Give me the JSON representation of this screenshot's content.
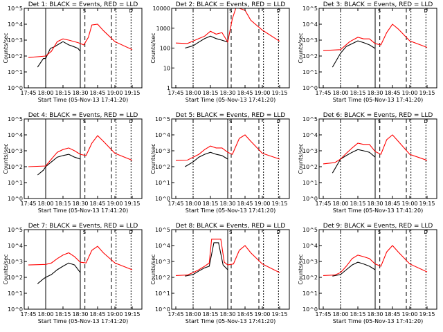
{
  "figure": {
    "colors": {
      "events": "#000000",
      "lld": "#ff0000",
      "axes": "#000000",
      "background": "#ffffff"
    }
  },
  "chart_data": [
    {
      "type": "line",
      "title": "Det 1: BLACK = Events, RED = LLD",
      "xlabel": "Start Time (05-Nov-13 17:41:20)",
      "ylabel": "Counts/sec",
      "y_scale": "log",
      "x_ticks": [
        "17:45",
        "18:00",
        "18:15",
        "18:30",
        "18:45",
        "19:00",
        "19:15"
      ],
      "y_ticks": [
        "10^0",
        "10^1",
        "10^2",
        "10^3",
        "10^4",
        "10^5"
      ],
      "ylim": [
        1,
        100000
      ],
      "markers": {
        "solid": [
          "18:00",
          "18:30"
        ],
        "dashed": [
          "18:34",
          "18:57"
        ],
        "dotted": [
          "19:01",
          "19:14"
        ],
        "labels": [
          "S",
          "D"
        ]
      },
      "series": [
        {
          "name": "Events",
          "color": "#000000",
          "x": [
            "17:53",
            "17:58",
            "18:00",
            "18:04",
            "18:08",
            "18:12",
            "18:15",
            "18:20",
            "18:24",
            "18:28",
            "18:30"
          ],
          "y": [
            20,
            70,
            70,
            300,
            400,
            600,
            800,
            500,
            400,
            300,
            200
          ]
        },
        {
          "name": "LLD",
          "color": "#ff0000",
          "x": [
            "17:45",
            "18:00",
            "18:05",
            "18:10",
            "18:15",
            "18:20",
            "18:28",
            "18:33",
            "18:37",
            "18:40",
            "18:45",
            "18:50",
            "19:00",
            "19:15"
          ],
          "y": [
            80,
            100,
            200,
            800,
            1200,
            1000,
            700,
            500,
            1500,
            9000,
            10000,
            4000,
            800,
            250
          ]
        }
      ]
    },
    {
      "type": "line",
      "title": "Det 2: BLACK = Events, RED = LLD",
      "xlabel": "Start Time (05-Nov-13 17:41:20)",
      "ylabel": "Counts/sec",
      "y_scale": "log",
      "x_ticks": [
        "17:45",
        "18:00",
        "18:15",
        "18:30",
        "18:45",
        "19:00",
        "19:15"
      ],
      "y_ticks": [
        "1",
        "10",
        "100",
        "1000",
        "10000"
      ],
      "ylim": [
        1,
        10000
      ],
      "markers": {
        "solid": [
          "18:30"
        ],
        "dashed": [
          "18:33",
          "18:57"
        ],
        "dotted": [
          "18:00",
          "19:01",
          "19:14"
        ],
        "labels": [
          "S",
          "D"
        ]
      },
      "series": [
        {
          "name": "Events",
          "color": "#000000",
          "x": [
            "17:53",
            "18:00",
            "18:05",
            "18:10",
            "18:15",
            "18:20",
            "18:25",
            "18:30"
          ],
          "y": [
            100,
            130,
            200,
            300,
            400,
            300,
            250,
            200
          ]
        },
        {
          "name": "LLD",
          "color": "#ff0000",
          "x": [
            "17:45",
            "17:55",
            "18:05",
            "18:10",
            "18:15",
            "18:20",
            "18:25",
            "18:30",
            "18:34",
            "18:37",
            "18:40",
            "18:45",
            "18:50",
            "19:00",
            "19:15"
          ],
          "y": [
            180,
            170,
            300,
            400,
            700,
            500,
            600,
            200,
            3000,
            10000,
            10000,
            8000,
            2500,
            800,
            220
          ]
        }
      ]
    },
    {
      "type": "line",
      "title": "Det 3: BLACK = Events, RED = LLD",
      "xlabel": "Start Time (05-Nov-13 17:41:20)",
      "ylabel": "Counts/sec",
      "y_scale": "log",
      "x_ticks": [
        "17:45",
        "18:00",
        "18:15",
        "18:30",
        "18:45",
        "19:00",
        "19:15"
      ],
      "y_ticks": [
        "10^0",
        "10^1",
        "10^2",
        "10^3",
        "10^4",
        "10^5"
      ],
      "ylim": [
        1,
        100000
      ],
      "markers": {
        "solid": [
          "18:30"
        ],
        "dashed": [
          "18:34",
          "18:57"
        ],
        "dotted": [
          "18:00",
          "19:01",
          "19:14"
        ],
        "labels": [
          "S",
          "D"
        ]
      },
      "series": [
        {
          "name": "Events",
          "color": "#000000",
          "x": [
            "17:53",
            "18:00",
            "18:05",
            "18:10",
            "18:15",
            "18:20",
            "18:25",
            "18:30"
          ],
          "y": [
            20,
            150,
            400,
            600,
            900,
            700,
            500,
            300
          ]
        },
        {
          "name": "LLD",
          "color": "#ff0000",
          "x": [
            "17:45",
            "18:00",
            "18:08",
            "18:15",
            "18:20",
            "18:25",
            "18:30",
            "18:35",
            "18:40",
            "18:45",
            "18:50",
            "19:00",
            "19:15"
          ],
          "y": [
            220,
            250,
            800,
            1500,
            1200,
            1200,
            600,
            500,
            3000,
            10000,
            5000,
            900,
            350
          ]
        }
      ]
    },
    {
      "type": "line",
      "title": "Det 4: BLACK = Events, RED = LLD",
      "xlabel": "Start Time (05-Nov-13 17:41:20)",
      "ylabel": "Counts/sec",
      "y_scale": "log",
      "x_ticks": [
        "17:45",
        "18:00",
        "18:15",
        "18:30",
        "18:45",
        "19:00",
        "19:15"
      ],
      "y_ticks": [
        "10^0",
        "10^1",
        "10^2",
        "10^3",
        "10^4",
        "10^5"
      ],
      "ylim": [
        1,
        100000
      ],
      "markers": {
        "solid": [
          "18:00",
          "18:30"
        ],
        "dashed": [
          "18:34",
          "18:57"
        ],
        "dotted": [
          "19:01",
          "19:14"
        ],
        "labels": [
          "S",
          "D"
        ]
      },
      "series": [
        {
          "name": "Events",
          "color": "#000000",
          "x": [
            "17:53",
            "17:58",
            "18:00",
            "18:05",
            "18:10",
            "18:15",
            "18:20",
            "18:25",
            "18:30"
          ],
          "y": [
            30,
            60,
            100,
            200,
            400,
            500,
            600,
            400,
            300
          ]
        },
        {
          "name": "LLD",
          "color": "#ff0000",
          "x": [
            "17:45",
            "18:00",
            "18:05",
            "18:10",
            "18:15",
            "18:20",
            "18:25",
            "18:30",
            "18:35",
            "18:40",
            "18:45",
            "18:50",
            "19:00",
            "19:15"
          ],
          "y": [
            100,
            110,
            300,
            800,
            1200,
            1500,
            1000,
            600,
            500,
            3000,
            9000,
            4000,
            700,
            250
          ]
        }
      ]
    },
    {
      "type": "line",
      "title": "Det 5: BLACK = Events, RED = LLD",
      "xlabel": "Start Time (05-Nov-13 17:41:20)",
      "ylabel": "Counts/sec",
      "y_scale": "log",
      "x_ticks": [
        "17:45",
        "18:00",
        "18:15",
        "18:30",
        "18:45",
        "19:00",
        "19:15"
      ],
      "y_ticks": [
        "10^0",
        "10^1",
        "10^2",
        "10^3",
        "10^4",
        "10^5"
      ],
      "ylim": [
        1,
        100000
      ],
      "markers": {
        "solid": [
          "18:30"
        ],
        "dashed": [
          "18:33",
          "18:57"
        ],
        "dotted": [
          "18:00",
          "19:01",
          "19:14"
        ],
        "labels": [
          "S",
          "D"
        ]
      },
      "series": [
        {
          "name": "Events",
          "color": "#000000",
          "x": [
            "17:53",
            "18:00",
            "18:05",
            "18:10",
            "18:15",
            "18:20",
            "18:25",
            "18:30"
          ],
          "y": [
            100,
            200,
            400,
            600,
            800,
            600,
            500,
            300
          ]
        },
        {
          "name": "LLD",
          "color": "#ff0000",
          "x": [
            "17:45",
            "17:55",
            "18:05",
            "18:10",
            "18:15",
            "18:20",
            "18:25",
            "18:30",
            "18:34",
            "18:40",
            "18:45",
            "18:50",
            "19:00",
            "19:15"
          ],
          "y": [
            250,
            260,
            600,
            1200,
            2000,
            1500,
            1500,
            800,
            600,
            6000,
            10000,
            4000,
            700,
            300
          ]
        }
      ]
    },
    {
      "type": "line",
      "title": "Det 6: BLACK = Events, RED = LLD",
      "xlabel": "Start Time (05-Nov-13 17:41:20)",
      "ylabel": "Counts/sec",
      "y_scale": "log",
      "x_ticks": [
        "17:45",
        "18:00",
        "18:15",
        "18:30",
        "18:45",
        "19:00",
        "19:15"
      ],
      "y_ticks": [
        "10^0",
        "10^1",
        "10^2",
        "10^3",
        "10^4",
        "10^5"
      ],
      "ylim": [
        1,
        100000
      ],
      "markers": {
        "solid": [
          "18:30"
        ],
        "dashed": [
          "18:34",
          "18:57"
        ],
        "dotted": [
          "18:00",
          "19:01",
          "19:14"
        ],
        "labels": [
          "S",
          "D"
        ]
      },
      "series": [
        {
          "name": "Events",
          "color": "#000000",
          "x": [
            "17:53",
            "18:00",
            "18:05",
            "18:10",
            "18:15",
            "18:20",
            "18:25",
            "18:30"
          ],
          "y": [
            40,
            300,
            500,
            800,
            1200,
            1000,
            800,
            400
          ]
        },
        {
          "name": "LLD",
          "color": "#ff0000",
          "x": [
            "17:45",
            "17:55",
            "18:00",
            "18:05",
            "18:10",
            "18:15",
            "18:20",
            "18:25",
            "18:30",
            "18:35",
            "18:40",
            "18:45",
            "18:50",
            "19:00",
            "19:15"
          ],
          "y": [
            150,
            180,
            300,
            700,
            1500,
            3000,
            2500,
            2500,
            900,
            600,
            5000,
            10000,
            4000,
            600,
            250
          ]
        }
      ]
    },
    {
      "type": "line",
      "title": "Det 7: BLACK = Events, RED = LLD",
      "xlabel": "Start Time (05-Nov-13 17:41:20)",
      "ylabel": "Counts/sec",
      "y_scale": "log",
      "x_ticks": [
        "17:45",
        "18:00",
        "18:15",
        "18:30",
        "18:45",
        "19:00",
        "19:15"
      ],
      "y_ticks": [
        "10^0",
        "10^1",
        "10^2",
        "10^3",
        "10^4",
        "10^5"
      ],
      "ylim": [
        1,
        100000
      ],
      "markers": {
        "solid": [
          "18:00",
          "18:30"
        ],
        "dashed": [
          "18:34",
          "18:57"
        ],
        "dotted": [
          "19:01",
          "19:14"
        ],
        "labels": [
          "S",
          "D"
        ]
      },
      "series": [
        {
          "name": "Events",
          "color": "#000000",
          "x": [
            "17:53",
            "17:58",
            "18:00",
            "18:05",
            "18:10",
            "18:15",
            "18:20",
            "18:25",
            "18:30"
          ],
          "y": [
            40,
            80,
            100,
            150,
            300,
            500,
            800,
            600,
            200
          ]
        },
        {
          "name": "LLD",
          "color": "#ff0000",
          "x": [
            "17:45",
            "18:00",
            "18:05",
            "18:10",
            "18:15",
            "18:20",
            "18:25",
            "18:30",
            "18:35",
            "18:40",
            "18:45",
            "18:50",
            "19:00",
            "19:15"
          ],
          "y": [
            600,
            650,
            800,
            1500,
            2500,
            3500,
            2000,
            900,
            800,
            5000,
            9000,
            3500,
            800,
            300
          ]
        }
      ]
    },
    {
      "type": "line",
      "title": "Det 8: BLACK = Events, RED = LLD",
      "xlabel": "Start Time (05-Nov-13 17:41:20)",
      "ylabel": "Counts/sec",
      "y_scale": "log",
      "x_ticks": [
        "17:45",
        "18:00",
        "18:15",
        "18:30",
        "18:45",
        "19:00",
        "19:15"
      ],
      "y_ticks": [
        "10^0",
        "10^1",
        "10^2",
        "10^3",
        "10^4",
        "10^5"
      ],
      "ylim": [
        1,
        100000
      ],
      "markers": {
        "solid": [
          "18:30"
        ],
        "dashed": [
          "18:33",
          "18:57"
        ],
        "dotted": [
          "18:00",
          "19:01",
          "19:14"
        ],
        "labels": [
          "S",
          "D"
        ]
      },
      "series": [
        {
          "name": "Events",
          "color": "#000000",
          "x": [
            "17:53",
            "18:00",
            "18:05",
            "18:10",
            "18:14",
            "18:18",
            "18:22",
            "18:26",
            "18:30"
          ],
          "y": [
            120,
            150,
            250,
            400,
            500,
            15000,
            15000,
            600,
            300
          ]
        },
        {
          "name": "LLD",
          "color": "#ff0000",
          "x": [
            "17:45",
            "17:55",
            "18:00",
            "18:05",
            "18:10",
            "18:14",
            "18:16",
            "18:20",
            "18:24",
            "18:27",
            "18:30",
            "18:35",
            "18:40",
            "18:45",
            "18:50",
            "19:00",
            "19:15"
          ],
          "y": [
            130,
            140,
            200,
            300,
            500,
            800,
            25000,
            25000,
            25000,
            900,
            600,
            700,
            5000,
            10000,
            3500,
            700,
            200
          ]
        }
      ]
    },
    {
      "type": "line",
      "title": "Det 9: BLACK = Events, RED = LLD",
      "xlabel": "Start Time (05-Nov-13 17:41:20)",
      "ylabel": "Counts/sec",
      "y_scale": "log",
      "x_ticks": [
        "17:45",
        "18:00",
        "18:15",
        "18:30",
        "18:45",
        "19:00",
        "19:15"
      ],
      "y_ticks": [
        "10^0",
        "10^1",
        "10^2",
        "10^3",
        "10^4",
        "10^5"
      ],
      "ylim": [
        1,
        100000
      ],
      "markers": {
        "solid": [
          "18:30"
        ],
        "dashed": [
          "18:34",
          "18:57"
        ],
        "dotted": [
          "18:00",
          "19:01",
          "19:14"
        ],
        "labels": [
          "S",
          "D"
        ]
      },
      "series": [
        {
          "name": "Events",
          "color": "#000000",
          "x": [
            "17:53",
            "18:00",
            "18:05",
            "18:10",
            "18:15",
            "18:20",
            "18:25",
            "18:30"
          ],
          "y": [
            120,
            150,
            300,
            600,
            900,
            700,
            500,
            300
          ]
        },
        {
          "name": "LLD",
          "color": "#ff0000",
          "x": [
            "17:45",
            "17:55",
            "18:00",
            "18:05",
            "18:10",
            "18:15",
            "18:20",
            "18:25",
            "18:30",
            "18:35",
            "18:40",
            "18:45",
            "18:50",
            "19:00",
            "19:15"
          ],
          "y": [
            130,
            140,
            200,
            500,
            1500,
            2500,
            2000,
            1500,
            700,
            500,
            4000,
            10000,
            4000,
            700,
            220
          ]
        }
      ]
    }
  ]
}
